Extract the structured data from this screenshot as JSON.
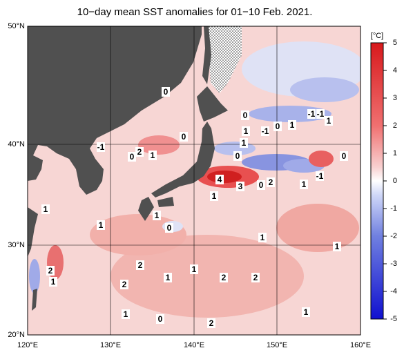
{
  "title": "10−day mean SST anomalies for 01−10 Feb. 2021.",
  "lon_labels": [
    "120°E",
    "130°E",
    "140°E",
    "150°E",
    "160°E"
  ],
  "lat_labels": [
    "50°N",
    "40°N",
    "30°N",
    "20°N"
  ],
  "colorbar": {
    "unit": "[°C]",
    "ticks": [
      5,
      4,
      3,
      2,
      1,
      0,
      -1,
      -2,
      -3,
      -4,
      -5
    ]
  },
  "contour_labels": [
    "0",
    "0",
    "0",
    "1",
    "-1",
    "0",
    "1",
    "-1",
    "-1",
    "1",
    "-1",
    "0",
    "2",
    "1",
    "1",
    "0",
    "0",
    "4",
    "3",
    "0",
    "2",
    "1",
    "-1",
    "1",
    "1",
    "1",
    "1",
    "0",
    "1",
    "1",
    "2",
    "1",
    "2",
    "1",
    "1",
    "2",
    "2",
    "2",
    "1",
    "0",
    "1",
    "2"
  ]
}
